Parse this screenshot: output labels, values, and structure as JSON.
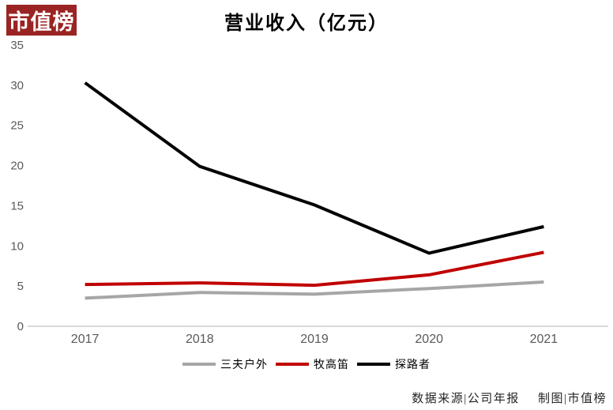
{
  "logo": {
    "text": "市值榜",
    "bg_color": "#9a2423",
    "text_color": "#ffffff"
  },
  "title": "营业收入（亿元）",
  "source": {
    "data_source": "数据来源|公司年报",
    "credit": "制图|市值榜"
  },
  "colors": {
    "axis_line": "#d9d9d9",
    "tick_label": "#595959",
    "background": "#ffffff"
  },
  "chart_data": {
    "type": "line",
    "title": "营业收入（亿元）",
    "categories": [
      "2017",
      "2018",
      "2019",
      "2020",
      "2021"
    ],
    "series": [
      {
        "name": "三夫户外",
        "color": "#a6a6a6",
        "values": [
          3.5,
          4.2,
          4.0,
          4.7,
          5.5
        ]
      },
      {
        "name": "牧高笛",
        "color": "#c00000",
        "values": [
          5.2,
          5.4,
          5.1,
          6.4,
          9.2
        ]
      },
      {
        "name": "探路者",
        "color": "#000000",
        "values": [
          30.3,
          19.9,
          15.1,
          9.1,
          12.4
        ]
      }
    ],
    "xlabel": "",
    "ylabel": "",
    "ylim": [
      0,
      35
    ],
    "yticks": [
      0,
      5,
      10,
      15,
      20,
      25,
      30,
      35
    ],
    "grid": false,
    "legend_position": "bottom"
  }
}
